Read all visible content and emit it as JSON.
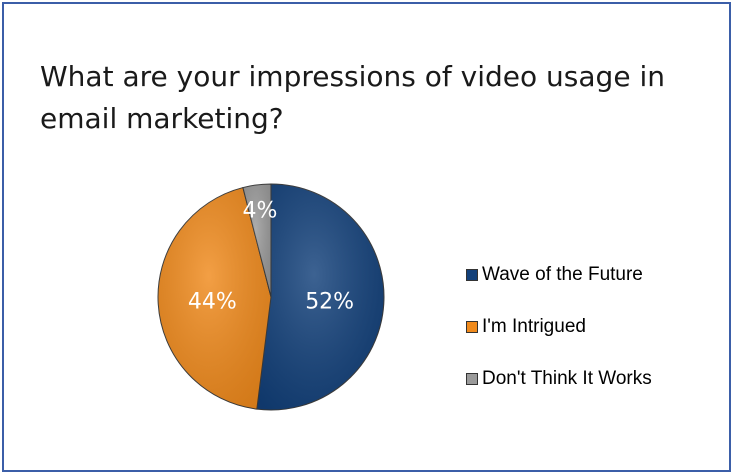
{
  "chart_data": {
    "type": "pie",
    "title": "What are your impressions of video usage in email marketing?",
    "categories": [
      "Wave of the Future",
      "I'm Intrigued",
      "Don't Think It Works"
    ],
    "values": [
      52,
      44,
      4
    ],
    "labels": [
      "52%",
      "44%",
      "4%"
    ],
    "colors": [
      "#12407a",
      "#f08a1c",
      "#9a9a9a"
    ],
    "legend_position": "right"
  }
}
